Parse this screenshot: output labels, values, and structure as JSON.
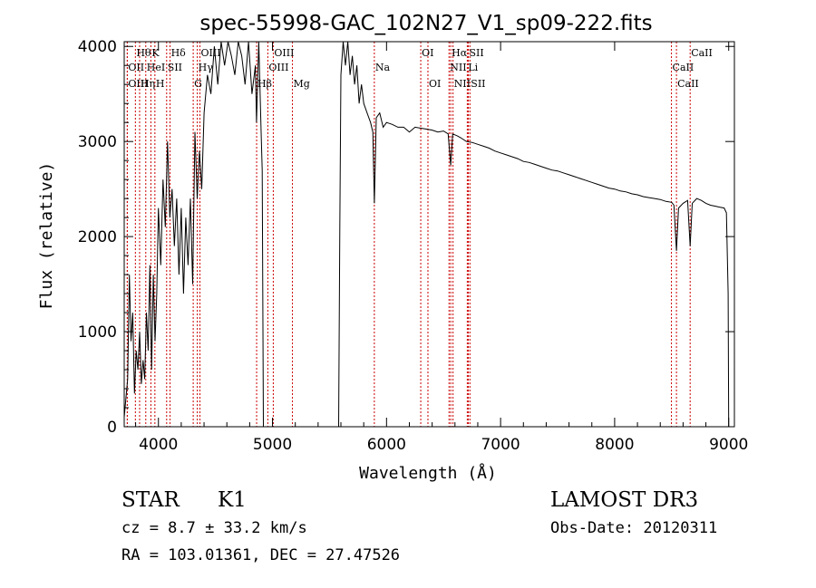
{
  "chart_data": {
    "type": "line",
    "title": "spec-55998-GAC_102N27_V1_sp09-222.fits",
    "xlabel": "Wavelength (Å)",
    "ylabel": "Flux (relative)",
    "xlim": [
      3700,
      9050
    ],
    "ylim": [
      0,
      4050
    ],
    "xticks": [
      "4000",
      "5000",
      "6000",
      "7000",
      "8000",
      "9000"
    ],
    "yticks": [
      "0",
      "1000",
      "2000",
      "3000",
      "4000"
    ],
    "line_color": "#000000",
    "marker_color": "#cc0000",
    "spectrum": {
      "x": [
        3700,
        3715,
        3730,
        3745,
        3760,
        3775,
        3790,
        3805,
        3820,
        3835,
        3850,
        3865,
        3880,
        3895,
        3910,
        3925,
        3940,
        3955,
        3970,
        3985,
        4000,
        4020,
        4040,
        4060,
        4080,
        4100,
        4120,
        4140,
        4160,
        4180,
        4200,
        4220,
        4240,
        4260,
        4280,
        4300,
        4320,
        4340,
        4360,
        4380,
        4400,
        4430,
        4460,
        4490,
        4520,
        4550,
        4580,
        4610,
        4640,
        4670,
        4700,
        4730,
        4760,
        4790,
        4820,
        4850,
        4860,
        4880,
        4900,
        4910,
        4920,
        5580,
        5590,
        5600,
        5620,
        5640,
        5660,
        5680,
        5700,
        5720,
        5740,
        5760,
        5780,
        5800,
        5830,
        5860,
        5880,
        5893,
        5910,
        5940,
        5970,
        6000,
        6050,
        6100,
        6150,
        6200,
        6250,
        6300,
        6350,
        6400,
        6450,
        6500,
        6540,
        6563,
        6580,
        6620,
        6650,
        6700,
        6750,
        6800,
        6850,
        6900,
        6950,
        7000,
        7050,
        7100,
        7150,
        7200,
        7250,
        7300,
        7350,
        7400,
        7450,
        7500,
        7550,
        7600,
        7650,
        7700,
        7750,
        7800,
        7850,
        7900,
        7950,
        8000,
        8050,
        8100,
        8150,
        8200,
        8250,
        8300,
        8350,
        8400,
        8450,
        8500,
        8520,
        8542,
        8560,
        8600,
        8640,
        8662,
        8680,
        8720,
        8760,
        8800,
        8840,
        8880,
        8920,
        8960,
        8980,
        8995,
        9000
      ],
      "y": [
        100,
        300,
        500,
        1600,
        900,
        1200,
        350,
        800,
        600,
        1000,
        450,
        700,
        500,
        1200,
        800,
        1700,
        600,
        1600,
        900,
        1400,
        2300,
        1700,
        2600,
        2100,
        3000,
        2200,
        2500,
        1900,
        2400,
        1600,
        2300,
        1400,
        2200,
        1700,
        2400,
        1500,
        3100,
        2400,
        2900,
        2500,
        3300,
        3700,
        3500,
        4000,
        3600,
        4050,
        3800,
        4050,
        3900,
        3700,
        4050,
        3900,
        3600,
        4050,
        3500,
        3800,
        3200,
        4050,
        3100,
        2700,
        0,
        0,
        2100,
        3700,
        4050,
        3800,
        4050,
        3700,
        3900,
        3600,
        3800,
        3400,
        3600,
        3400,
        3300,
        3200,
        3100,
        2350,
        3250,
        3300,
        3150,
        3200,
        3180,
        3150,
        3150,
        3100,
        3150,
        3140,
        3130,
        3120,
        3100,
        3110,
        3080,
        2750,
        3080,
        3060,
        3040,
        3000,
        2990,
        2970,
        2950,
        2930,
        2900,
        2880,
        2860,
        2840,
        2820,
        2790,
        2780,
        2760,
        2740,
        2720,
        2700,
        2690,
        2670,
        2650,
        2630,
        2610,
        2590,
        2570,
        2550,
        2530,
        2510,
        2500,
        2480,
        2470,
        2450,
        2440,
        2420,
        2410,
        2400,
        2390,
        2370,
        2360,
        2330,
        1850,
        2300,
        2350,
        2380,
        1900,
        2350,
        2400,
        2380,
        2350,
        2330,
        2320,
        2310,
        2300,
        2250,
        1400,
        0
      ]
    },
    "line_markers": [
      {
        "label": "Hθ",
        "x": 3798,
        "row": 1
      },
      {
        "label": "K",
        "x": 3934,
        "row": 1
      },
      {
        "label": "Hδ",
        "x": 4102,
        "row": 1
      },
      {
        "label": "OIII",
        "x": 4364,
        "row": 1
      },
      {
        "label": "OIII",
        "x": 5007,
        "row": 1
      },
      {
        "label": "OI",
        "x": 6300,
        "row": 1
      },
      {
        "label": "Hα",
        "x": 6563,
        "row": 1
      },
      {
        "label": "SII",
        "x": 6717,
        "row": 1
      },
      {
        "label": "CaII",
        "x": 8662,
        "row": 1
      },
      {
        "label": "OII",
        "x": 3727,
        "row": 2
      },
      {
        "label": "HeI",
        "x": 3889,
        "row": 2
      },
      {
        "label": "SII",
        "x": 4072,
        "row": 2
      },
      {
        "label": "Hγ",
        "x": 4341,
        "row": 2
      },
      {
        "label": "OIII",
        "x": 4959,
        "row": 2
      },
      {
        "label": "Na",
        "x": 5893,
        "row": 2
      },
      {
        "label": "NII",
        "x": 6548,
        "row": 2
      },
      {
        "label": "Li",
        "x": 6708,
        "row": 2
      },
      {
        "label": "CaII",
        "x": 8498,
        "row": 2
      },
      {
        "label": "OIII",
        "x": 3727,
        "row": 3
      },
      {
        "label": "Hη",
        "x": 3835,
        "row": 3
      },
      {
        "label": "H",
        "x": 3969,
        "row": 3
      },
      {
        "label": "G",
        "x": 4305,
        "row": 3
      },
      {
        "label": "Hβ",
        "x": 4861,
        "row": 3
      },
      {
        "label": "Mg",
        "x": 5175,
        "row": 3
      },
      {
        "label": "OI",
        "x": 6363,
        "row": 3
      },
      {
        "label": "NII",
        "x": 6583,
        "row": 3
      },
      {
        "label": "SII",
        "x": 6731,
        "row": 3
      },
      {
        "label": "CaII",
        "x": 8542,
        "row": 3
      }
    ]
  },
  "info": {
    "object_class": "STAR",
    "subclass": "K1",
    "survey": "LAMOST DR3",
    "cz": "cz = 8.7 ± 33.2 km/s",
    "obs_date": "Obs-Date: 20120311",
    "coords": "RA = 103.01361, DEC =  27.47526"
  }
}
